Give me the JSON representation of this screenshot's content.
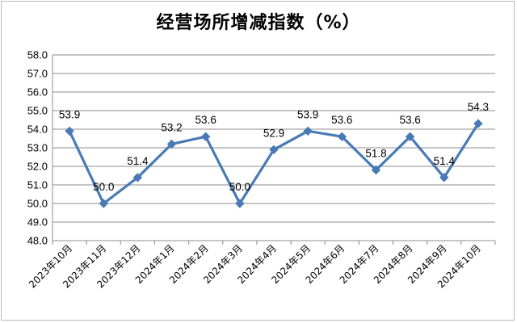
{
  "chart_data": {
    "type": "line",
    "title": "经营场所增减指数（%）",
    "categories": [
      "2023年10月",
      "2023年11月",
      "2023年12月",
      "2024年1月",
      "2024年2月",
      "2024年3月",
      "2024年4月",
      "2024年5月",
      "2024年6月",
      "2024年7月",
      "2024年8月",
      "2024年9月",
      "2024年10月"
    ],
    "values": [
      53.9,
      50.0,
      51.4,
      53.2,
      53.6,
      50.0,
      52.9,
      53.9,
      53.6,
      51.8,
      53.6,
      51.4,
      54.3
    ],
    "value_labels": [
      "53.9",
      "50.0",
      "51.4",
      "53.2",
      "53.6",
      "50.0",
      "52.9",
      "53.9",
      "53.6",
      "51.8",
      "53.6",
      "51.4",
      "54.3"
    ],
    "yticks": [
      "48.0",
      "49.0",
      "50.0",
      "51.0",
      "52.0",
      "53.0",
      "54.0",
      "55.0",
      "56.0",
      "57.0",
      "58.0"
    ],
    "ylim": [
      48,
      58
    ],
    "grid": true,
    "line_color": "#4a7ab5"
  }
}
